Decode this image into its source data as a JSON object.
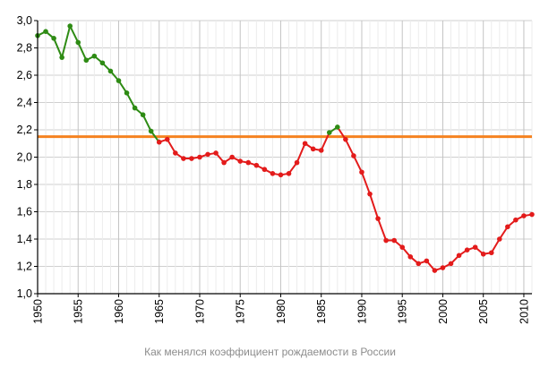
{
  "caption": "Как менялся коэффициент рождаемости в России",
  "chart_data": {
    "type": "line",
    "title": "",
    "xlabel": "",
    "ylabel": "",
    "xlim": [
      1950,
      2011
    ],
    "ylim": [
      1.0,
      3.0
    ],
    "y_ticks": [
      1.0,
      1.2,
      1.4,
      1.6,
      1.8,
      2.0,
      2.2,
      2.4,
      2.6,
      2.8,
      3.0
    ],
    "y_tick_labels": [
      "1,0",
      "1,2",
      "1,4",
      "1,6",
      "1,8",
      "2,0",
      "2,2",
      "2,4",
      "2,6",
      "2,8",
      "3,0"
    ],
    "x_ticks": [
      1950,
      1955,
      1960,
      1965,
      1970,
      1975,
      1980,
      1985,
      1990,
      1995,
      2000,
      2005,
      2010
    ],
    "x_tick_labels": [
      "1950",
      "1955",
      "1960",
      "1965",
      "1970",
      "1975",
      "1980",
      "1985",
      "1990",
      "1995",
      "2000",
      "2005",
      "2010"
    ],
    "grid": "both",
    "reference_line": {
      "y": 2.15,
      "color": "#f58220"
    },
    "colors": {
      "above": "#2e8b14",
      "below": "#e31b1b",
      "grid": "#cfcfcf"
    },
    "series": [
      {
        "x": [
          1950,
          1951,
          1952,
          1953,
          1954,
          1955,
          1956,
          1957,
          1958,
          1959,
          1960,
          1961,
          1962,
          1963,
          1964,
          1965,
          1966,
          1967,
          1968,
          1969,
          1970,
          1971,
          1972,
          1973,
          1974,
          1975,
          1976,
          1977,
          1978,
          1979,
          1980,
          1981,
          1982,
          1983,
          1984,
          1985,
          1986,
          1987,
          1988,
          1989,
          1990,
          1991,
          1992,
          1993,
          1994,
          1995,
          1996,
          1997,
          1998,
          1999,
          2000,
          2001,
          2002,
          2003,
          2004,
          2005,
          2006,
          2007,
          2008,
          2009,
          2010,
          2011
        ],
        "values": [
          2.89,
          2.92,
          2.87,
          2.73,
          2.96,
          2.84,
          2.71,
          2.74,
          2.69,
          2.63,
          2.56,
          2.47,
          2.36,
          2.31,
          2.19,
          2.11,
          2.13,
          2.03,
          1.99,
          1.99,
          2.0,
          2.02,
          2.03,
          1.96,
          2.0,
          1.97,
          1.96,
          1.94,
          1.91,
          1.88,
          1.87,
          1.88,
          1.96,
          2.1,
          2.06,
          2.05,
          2.18,
          2.22,
          2.13,
          2.01,
          1.89,
          1.73,
          1.55,
          1.39,
          1.39,
          1.34,
          1.27,
          1.22,
          1.24,
          1.17,
          1.19,
          1.22,
          1.28,
          1.32,
          1.34,
          1.29,
          1.3,
          1.4,
          1.49,
          1.54,
          1.57,
          1.58
        ]
      }
    ]
  }
}
